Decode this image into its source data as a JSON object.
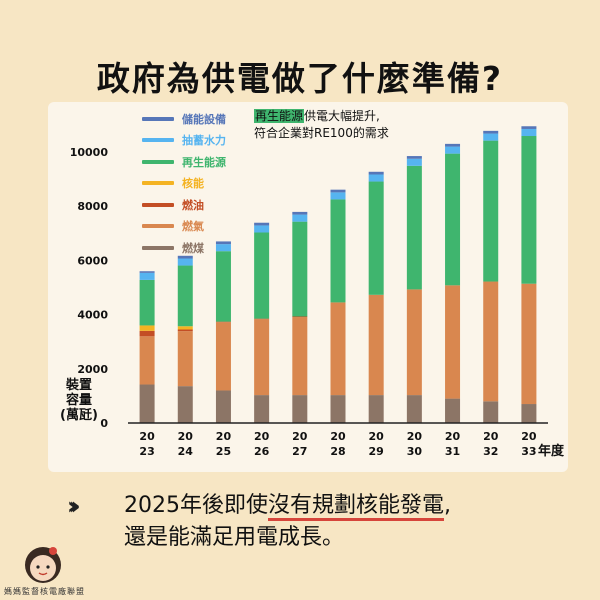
{
  "title": "政府為供電做了什麼準備?",
  "annotation": {
    "highlight": "再生能源",
    "line1_rest": "供電大幅提升,",
    "line2": "符合企業對RE100的需求"
  },
  "ylabel_lines": [
    "裝置",
    "容量",
    "(萬瓩)"
  ],
  "xunit": "年度",
  "note": {
    "prefix": "2025年後即使",
    "underlined": "沒有規劃核能發電",
    "suffix": ",",
    "line2": "還是能滿足用電成長。"
  },
  "arrows": "›››",
  "org": "媽媽監督核電廠聯盟",
  "colors": {
    "background": "#f7e6c4",
    "highlight": "#3fb56e",
    "underline": "#d6453b"
  },
  "chart_data": {
    "type": "bar",
    "stacked": true,
    "categories": [
      "2023",
      "2024",
      "2025",
      "2026",
      "2027",
      "2028",
      "2029",
      "2030",
      "2031",
      "2032",
      "2033"
    ],
    "category_labels": [
      [
        "20",
        "23"
      ],
      [
        "20",
        "24"
      ],
      [
        "20",
        "25"
      ],
      [
        "20",
        "26"
      ],
      [
        "20",
        "27"
      ],
      [
        "20",
        "28"
      ],
      [
        "20",
        "29"
      ],
      [
        "20",
        "30"
      ],
      [
        "20",
        "31"
      ],
      [
        "20",
        "32"
      ],
      [
        "20",
        "33"
      ]
    ],
    "ylim": [
      0,
      11000
    ],
    "yticks": [
      0,
      2000,
      4000,
      6000,
      8000,
      10000
    ],
    "ylabel": "裝置容量(萬瓩)",
    "xlabel": "年度",
    "legend_position": "top-left",
    "series": [
      {
        "name": "燃煤",
        "color": "#8c7566",
        "values": [
          1420,
          1360,
          1200,
          1030,
          1030,
          1030,
          1030,
          1030,
          900,
          800,
          700
        ]
      },
      {
        "name": "燃氣",
        "color": "#d9874f",
        "values": [
          1780,
          2030,
          2520,
          2800,
          2880,
          3420,
          3700,
          3900,
          4180,
          4420,
          4440
        ]
      },
      {
        "name": "燃油",
        "color": "#c34e25",
        "values": [
          200,
          60,
          20,
          20,
          20,
          0,
          0,
          0,
          0,
          0,
          0
        ]
      },
      {
        "name": "核能",
        "color": "#f4b322",
        "values": [
          200,
          120,
          0,
          0,
          0,
          0,
          0,
          0,
          0,
          0,
          0
        ]
      },
      {
        "name": "再生能源",
        "color": "#3fb56e",
        "values": [
          1680,
          2240,
          2600,
          3180,
          3500,
          3800,
          4180,
          4560,
          4860,
          5200,
          5450
        ]
      },
      {
        "name": "抽蓄水力",
        "color": "#56b4f0",
        "values": [
          260,
          260,
          260,
          260,
          260,
          260,
          260,
          260,
          260,
          260,
          260
        ]
      },
      {
        "name": "儲能設備",
        "color": "#5676b8",
        "values": [
          60,
          100,
          100,
          100,
          100,
          100,
          100,
          100,
          100,
          100,
          100
        ]
      }
    ],
    "legend_order": [
      "儲能設備",
      "抽蓄水力",
      "再生能源",
      "核能",
      "燃油",
      "燃氣",
      "燃煤"
    ]
  }
}
